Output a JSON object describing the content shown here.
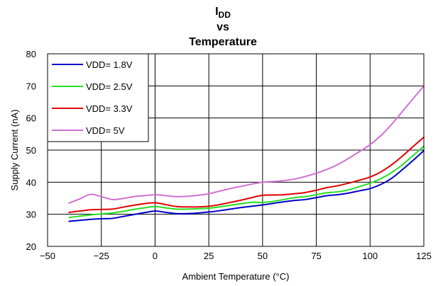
{
  "chart_data": {
    "type": "line",
    "title_lines": [
      {
        "main": "I",
        "sub": "DD"
      },
      {
        "main": "vs"
      },
      {
        "main": "Temperature"
      }
    ],
    "xlabel": "Ambient Temperature (°C)",
    "ylabel": "Supply Current (nA)",
    "xlim": [
      -50,
      125
    ],
    "ylim": [
      20,
      80
    ],
    "x_ticks": [
      -50,
      -25,
      0,
      25,
      50,
      75,
      100,
      125
    ],
    "x_tick_labels": [
      "−50",
      "−25",
      "0",
      "25",
      "50",
      "75",
      "100",
      "125"
    ],
    "y_ticks": [
      20,
      30,
      40,
      50,
      60,
      70,
      80
    ],
    "y_tick_labels": [
      "20",
      "30",
      "40",
      "50",
      "60",
      "70",
      "80"
    ],
    "grid": true,
    "legend_position": "top-left",
    "series": [
      {
        "name": "VDD= 1.8V",
        "color": "#0000c8",
        "x": [
          -40,
          -35,
          -30,
          -25,
          -20,
          -15,
          -10,
          -5,
          0,
          5,
          10,
          15,
          20,
          25,
          30,
          35,
          40,
          45,
          50,
          55,
          60,
          65,
          70,
          75,
          80,
          85,
          90,
          95,
          100,
          105,
          110,
          115,
          120,
          125
        ],
        "y": [
          27.8,
          28.1,
          28.4,
          28.6,
          28.7,
          29.3,
          29.9,
          30.5,
          31.0,
          30.6,
          30.2,
          30.2,
          30.4,
          30.7,
          31.1,
          31.6,
          32.1,
          32.5,
          32.9,
          33.4,
          33.9,
          34.3,
          34.6,
          35.2,
          35.8,
          36.1,
          36.6,
          37.3,
          38.0,
          39.3,
          41.2,
          43.9,
          46.8,
          49.8
        ]
      },
      {
        "name": "VDD= 2.5V",
        "color": "#22e022",
        "x": [
          -40,
          -35,
          -30,
          -25,
          -20,
          -15,
          -10,
          -5,
          0,
          5,
          10,
          15,
          20,
          25,
          30,
          35,
          40,
          45,
          50,
          55,
          60,
          65,
          70,
          75,
          80,
          85,
          90,
          95,
          100,
          105,
          110,
          115,
          120,
          125
        ],
        "y": [
          29.0,
          29.4,
          29.8,
          30.1,
          30.4,
          30.9,
          31.5,
          32.0,
          32.4,
          32.0,
          31.6,
          31.6,
          31.7,
          31.9,
          32.3,
          32.8,
          33.3,
          33.7,
          33.7,
          34.0,
          34.6,
          35.2,
          35.5,
          36.1,
          36.7,
          37.0,
          37.6,
          38.6,
          39.7,
          41.1,
          43.0,
          45.4,
          48.3,
          51.2
        ]
      },
      {
        "name": "VDD= 3.3V",
        "color": "#e00000",
        "x": [
          -40,
          -35,
          -30,
          -25,
          -20,
          -15,
          -10,
          -5,
          0,
          5,
          10,
          15,
          20,
          25,
          30,
          35,
          40,
          45,
          50,
          55,
          60,
          65,
          70,
          75,
          80,
          85,
          90,
          95,
          100,
          105,
          110,
          115,
          120,
          125
        ],
        "y": [
          30.6,
          31.0,
          31.4,
          31.5,
          31.6,
          32.2,
          32.8,
          33.3,
          33.6,
          33.0,
          32.4,
          32.3,
          32.3,
          32.5,
          33.0,
          33.7,
          34.4,
          35.2,
          35.9,
          36.0,
          36.1,
          36.4,
          36.8,
          37.5,
          38.3,
          38.9,
          39.7,
          40.6,
          41.6,
          43.2,
          45.4,
          48.1,
          51.1,
          54.0
        ]
      },
      {
        "name": "VDD= 5V",
        "color": "#d070d0",
        "x": [
          -40,
          -35,
          -30,
          -25,
          -20,
          -15,
          -10,
          -5,
          0,
          5,
          10,
          15,
          20,
          25,
          30,
          35,
          40,
          45,
          50,
          55,
          60,
          65,
          70,
          75,
          80,
          85,
          90,
          95,
          100,
          105,
          110,
          115,
          120,
          125
        ],
        "y": [
          33.5,
          34.8,
          36.2,
          35.5,
          34.6,
          34.9,
          35.5,
          35.8,
          36.1,
          35.8,
          35.5,
          35.6,
          35.9,
          36.4,
          37.2,
          38.0,
          38.7,
          39.4,
          40.0,
          40.2,
          40.5,
          41.0,
          41.8,
          42.8,
          44.0,
          45.5,
          47.4,
          49.5,
          51.7,
          54.5,
          58.0,
          62.0,
          66.0,
          70.0
        ]
      }
    ]
  }
}
